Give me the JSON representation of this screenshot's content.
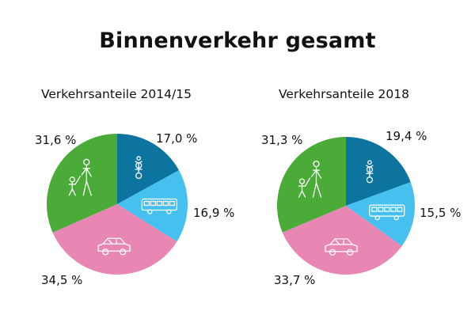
{
  "title": "Binnenverkehr gesamt",
  "chart_data": [
    {
      "type": "pie",
      "title": "Verkehrsanteile 2014/15",
      "slices": [
        {
          "value": 17.0,
          "label": "17,0 %",
          "color": "#0d739f",
          "icon": "bicycle-icon"
        },
        {
          "value": 16.9,
          "label": "16,9 %",
          "color": "#46c0ef",
          "icon": "bus-icon"
        },
        {
          "value": 34.5,
          "label": "34,5 %",
          "color": "#e887b4",
          "icon": "car-icon"
        },
        {
          "value": 31.6,
          "label": "31,6 %",
          "color": "#4aab38",
          "icon": "pedestrian-icon"
        }
      ]
    },
    {
      "type": "pie",
      "title": "Verkehrsanteile 2018",
      "slices": [
        {
          "value": 19.4,
          "label": "19,4 %",
          "color": "#0d739f",
          "icon": "bicycle-icon"
        },
        {
          "value": 15.5,
          "label": "15,5 %",
          "color": "#46c0ef",
          "icon": "bus-icon"
        },
        {
          "value": 33.7,
          "label": "33,7 %",
          "color": "#e887b4",
          "icon": "car-icon"
        },
        {
          "value": 31.3,
          "label": "31,3 %",
          "color": "#4aab38",
          "icon": "pedestrian-icon"
        }
      ]
    }
  ]
}
